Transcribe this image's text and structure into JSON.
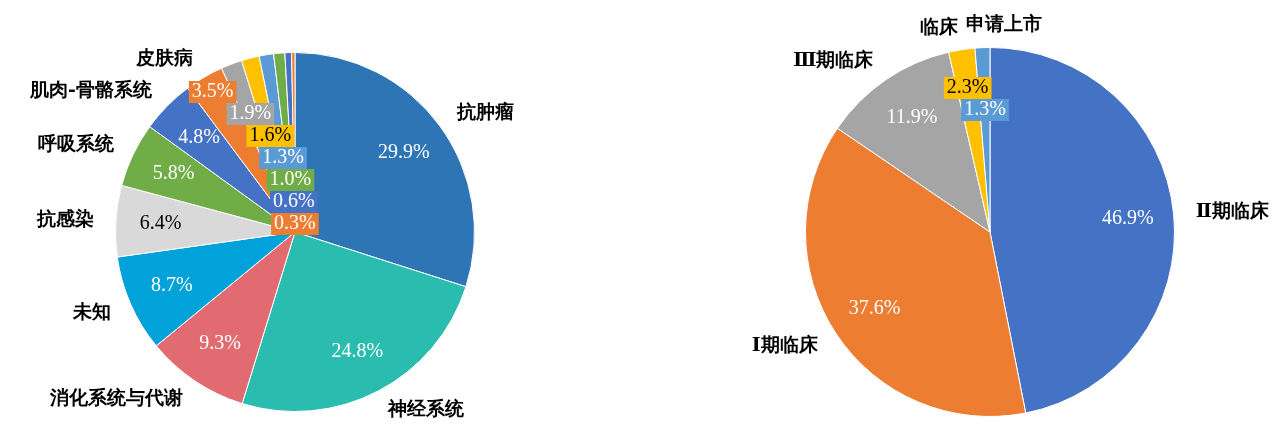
{
  "chart_data": [
    {
      "type": "pie",
      "categories": [
        "抗肿瘤",
        "神经系统",
        "消化系统与代谢",
        "未知",
        "抗感染",
        "呼吸系统",
        "肌肉-骨骼系统",
        "皮肤病",
        null,
        null,
        null,
        null,
        null,
        null
      ],
      "values": [
        29.9,
        24.8,
        9.3,
        8.7,
        6.4,
        5.8,
        4.8,
        3.5,
        1.9,
        1.6,
        1.3,
        1.0,
        0.6,
        0.3
      ],
      "value_labels": [
        "29.9%",
        "24.8%",
        "9.3%",
        "8.7%",
        "6.4%",
        "5.8%",
        "4.8%",
        "3.5%",
        "1.9%",
        "1.6%",
        "1.3%",
        "1.0%",
        "0.6%",
        "0.3%"
      ],
      "colors": [
        "#2e75b6",
        "#2bbcb0",
        "#e26b72",
        "#00a2d9",
        "#d9d9d9",
        "#70ad47",
        "#4472c4",
        "#ed7d31",
        "#a5a5a5",
        "#ffc000",
        "#5b9bd5",
        "#70ad47",
        "#4472c4",
        "#ed7d31"
      ],
      "legend": false
    },
    {
      "type": "pie",
      "categories": [
        "Ⅱ期临床",
        "Ⅰ期临床",
        "Ⅲ期临床",
        "临床",
        "申请上市"
      ],
      "values": [
        46.9,
        37.6,
        11.9,
        2.3,
        1.3
      ],
      "value_labels": [
        "46.9%",
        "37.6%",
        "11.9%",
        "2.3%",
        "1.3%"
      ],
      "colors": [
        "#4472c4",
        "#ed7d31",
        "#a5a5a5",
        "#ffc000",
        "#5b9bd5"
      ],
      "legend": false
    }
  ]
}
